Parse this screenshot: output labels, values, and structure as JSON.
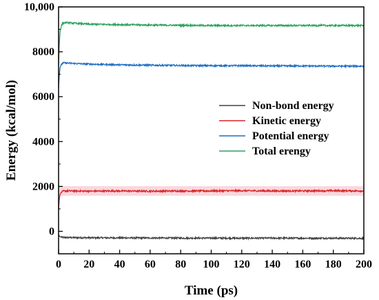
{
  "chart_data": {
    "type": "line",
    "xlabel": "Time (ps)",
    "ylabel": "Energy (kcal/mol)",
    "xlim": [
      0,
      200
    ],
    "ylim": [
      -1000,
      10000
    ],
    "xticks": [
      0,
      20,
      40,
      60,
      80,
      100,
      120,
      140,
      160,
      180,
      200
    ],
    "xtick_labels": [
      "0",
      "20",
      "40",
      "60",
      "80",
      "100",
      "120",
      "140",
      "160",
      "180",
      "200"
    ],
    "yticks": [
      0,
      2000,
      4000,
      6000,
      8000,
      10000
    ],
    "ytick_labels": [
      "0",
      "2000",
      "4000",
      "6000",
      "8000",
      "10,000"
    ],
    "grid": false,
    "legend_position": "center-right",
    "series": [
      {
        "name": "Non-bond energy",
        "color": "#404040",
        "x": [
          0,
          0.5,
          1,
          2,
          3,
          5,
          10,
          20,
          40,
          60,
          80,
          100,
          120,
          140,
          160,
          180,
          200
        ],
        "y": [
          -150,
          -200,
          -240,
          -260,
          -270,
          -275,
          -280,
          -285,
          -290,
          -295,
          -300,
          -300,
          -305,
          -300,
          -305,
          -305,
          -310
        ]
      },
      {
        "name": "Kinetic energy",
        "color": "#d62728",
        "x": [
          0,
          0.5,
          1,
          2,
          3,
          5,
          10,
          20,
          40,
          60,
          80,
          100,
          120,
          140,
          160,
          180,
          200
        ],
        "y": [
          1000,
          1450,
          1650,
          1750,
          1790,
          1800,
          1800,
          1790,
          1800,
          1790,
          1800,
          1800,
          1810,
          1800,
          1800,
          1810,
          1800
        ]
      },
      {
        "name": "Potential energy",
        "color": "#1f6fc4",
        "x": [
          0,
          0.5,
          1,
          2,
          3,
          5,
          10,
          20,
          40,
          60,
          80,
          100,
          120,
          140,
          160,
          180,
          200
        ],
        "y": [
          6400,
          7000,
          7300,
          7450,
          7500,
          7500,
          7480,
          7450,
          7420,
          7400,
          7390,
          7380,
          7380,
          7370,
          7370,
          7360,
          7360
        ]
      },
      {
        "name": "Total erengy",
        "color": "#2ca25f",
        "x": [
          0,
          0.5,
          1,
          2,
          3,
          5,
          10,
          20,
          40,
          60,
          80,
          100,
          120,
          140,
          160,
          180,
          200
        ],
        "y": [
          7400,
          8400,
          8900,
          9200,
          9280,
          9300,
          9270,
          9230,
          9210,
          9190,
          9180,
          9170,
          9170,
          9170,
          9170,
          9170,
          9170
        ]
      }
    ],
    "annotations": [
      {
        "type": "band",
        "y": 1800,
        "color": "#f4b6c2",
        "description": "light pink highlight band behind Kinetic energy curve"
      }
    ]
  }
}
